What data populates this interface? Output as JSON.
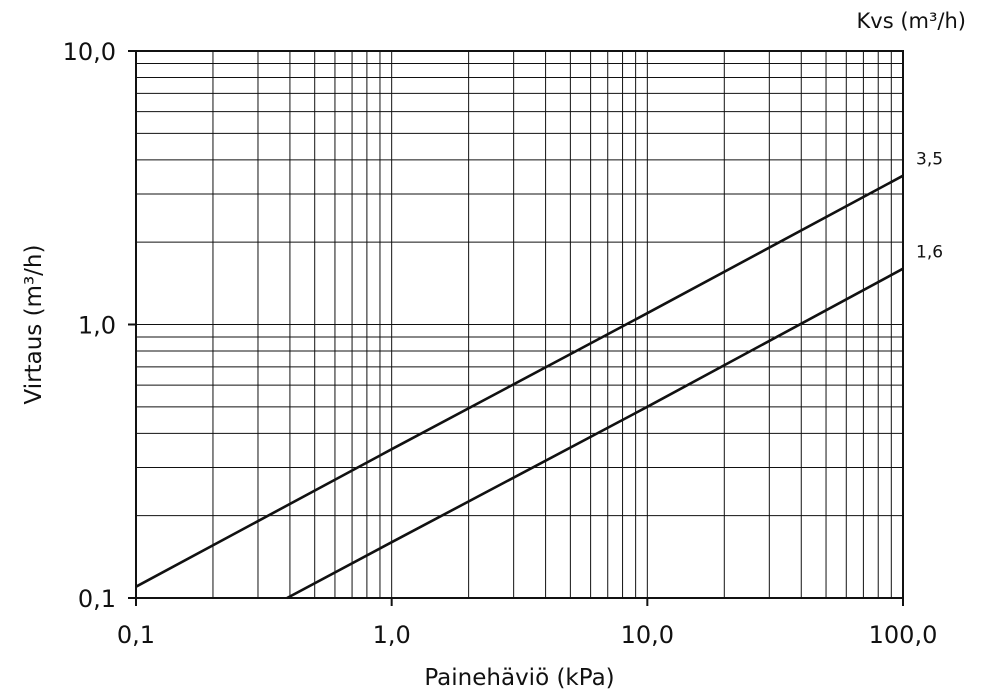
{
  "chart_data": {
    "type": "line",
    "xscale": "log",
    "yscale": "log",
    "xlim": [
      0.1,
      100
    ],
    "ylim": [
      0.1,
      10
    ],
    "grid": true,
    "xlabel": "Painehäviö (kPa)",
    "ylabel": "Virtaus (m³/h)",
    "legend_title": "Kvs (m³/h)",
    "x_ticks": [
      {
        "value": 0.1,
        "label": "0,1"
      },
      {
        "value": 1,
        "label": "1,0"
      },
      {
        "value": 10,
        "label": "10,0"
      },
      {
        "value": 100,
        "label": "100,0"
      }
    ],
    "y_ticks": [
      {
        "value": 0.1,
        "label": "0,1"
      },
      {
        "value": 1,
        "label": "1,0"
      },
      {
        "value": 10,
        "label": "10,0"
      }
    ],
    "series": [
      {
        "name": "3,5",
        "kvs": 3.5,
        "x": [
          0.1,
          1,
          10,
          100
        ],
        "y": [
          0.11,
          0.35,
          1.1,
          3.5
        ]
      },
      {
        "name": "1,6",
        "kvs": 1.6,
        "x": [
          0.39,
          1,
          10,
          100
        ],
        "y": [
          0.1,
          0.16,
          0.5,
          1.6
        ]
      }
    ]
  }
}
